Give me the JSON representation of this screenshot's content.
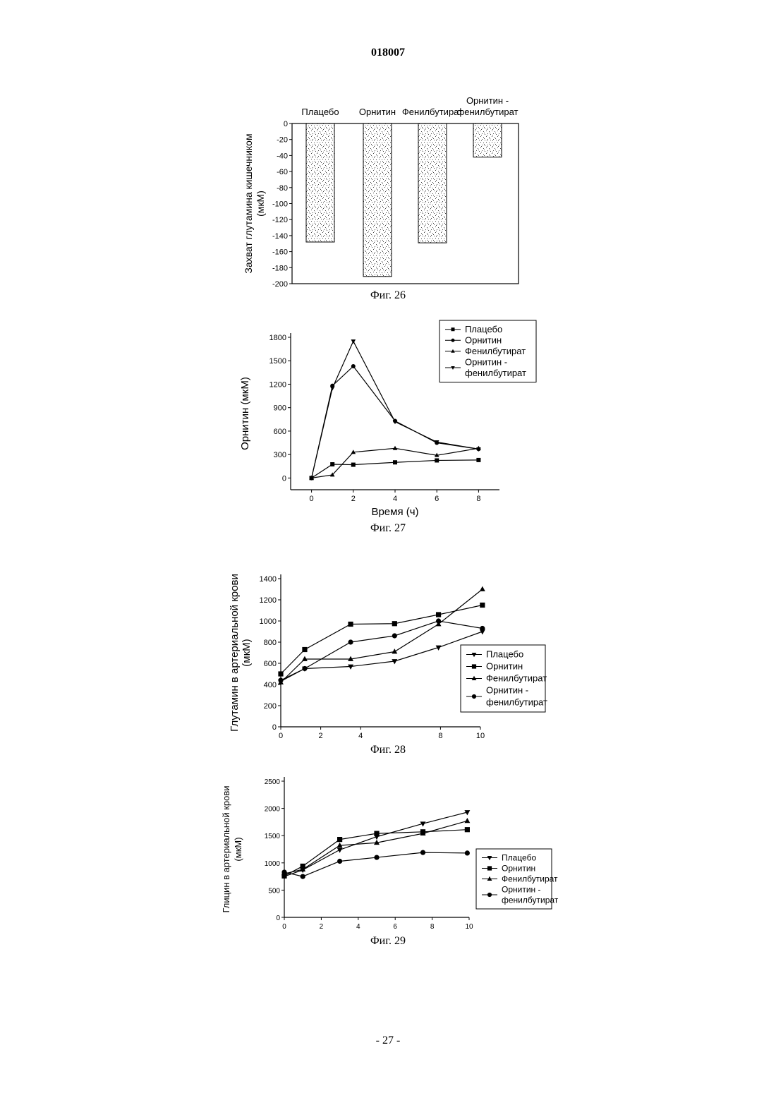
{
  "header": {
    "doc_number": "018007"
  },
  "footer": {
    "page_number": "- 27 -"
  },
  "figures": [
    {
      "caption": "Фиг. 26"
    },
    {
      "caption": "Фиг. 27"
    },
    {
      "caption": "Фиг. 28"
    },
    {
      "caption": "Фиг. 29"
    }
  ],
  "chart_data": [
    {
      "type": "bar",
      "title": "",
      "ylabel": [
        "Захват глутамина кишечником",
        "(мкМ)"
      ],
      "xlabel": "",
      "categories": [
        [
          "Плацебо"
        ],
        [
          "Орнитин"
        ],
        [
          "Фенилбутират"
        ],
        [
          "Орнитин -",
          "фенилбутират"
        ]
      ],
      "values": [
        -148,
        -191,
        -149,
        -42
      ],
      "ylim": [
        -200,
        0
      ],
      "yticks": [
        0,
        -20,
        -40,
        -60,
        -80,
        -100,
        -120,
        -140,
        -160,
        -180,
        -200
      ],
      "legend": "none"
    },
    {
      "type": "line",
      "ylabel": "Орнитин (мкМ)",
      "xlabel": "Время (ч)",
      "ylim": [
        -150,
        1800
      ],
      "xlim": [
        -1,
        9
      ],
      "yticks": [
        0,
        300,
        600,
        900,
        1200,
        1500,
        1800
      ],
      "xticks": [
        0,
        2,
        4,
        6,
        8
      ],
      "legend": "top-right",
      "series": [
        {
          "name": "Плацебо",
          "marker": "square",
          "x": [
            0,
            1,
            2,
            4,
            6,
            8
          ],
          "y": [
            0,
            175,
            170,
            200,
            225,
            230
          ]
        },
        {
          "name": "Орнитин",
          "marker": "circle",
          "x": [
            0,
            1,
            2,
            4,
            6,
            8
          ],
          "y": [
            0,
            1180,
            1430,
            730,
            450,
            370
          ]
        },
        {
          "name": "Фенилбутират",
          "marker": "triangle-up",
          "x": [
            0,
            1,
            2,
            4,
            6,
            8
          ],
          "y": [
            0,
            40,
            330,
            380,
            290,
            380
          ]
        },
        {
          "name": [
            "Орнитин -",
            "фенилбутират"
          ],
          "marker": "triangle-down",
          "x": [
            0,
            1,
            2,
            4,
            6,
            8
          ],
          "y": [
            0,
            1150,
            1750,
            720,
            460,
            370
          ]
        }
      ]
    },
    {
      "type": "line",
      "ylabel": [
        "Глутамин в артериальной крови",
        "(мкМ)"
      ],
      "xlabel": "",
      "ylim": [
        0,
        1400
      ],
      "xlim": [
        0,
        10
      ],
      "yticks": [
        0,
        200,
        400,
        600,
        800,
        1000,
        1200,
        1400
      ],
      "xticks": [
        0,
        2,
        4,
        8,
        10
      ],
      "legend": "bottom-right",
      "series": [
        {
          "name": "Плацебо",
          "marker": "triangle-down",
          "x": [
            0,
            1.2,
            3.5,
            5.7,
            7.9,
            10.1
          ],
          "y": [
            430,
            550,
            570,
            620,
            750,
            900
          ]
        },
        {
          "name": "Орнитин",
          "marker": "square",
          "x": [
            0,
            1.2,
            3.5,
            5.7,
            7.9,
            10.1
          ],
          "y": [
            500,
            730,
            970,
            975,
            1060,
            1150
          ]
        },
        {
          "name": "Фенилбутират",
          "marker": "triangle-up",
          "x": [
            0,
            1.2,
            3.5,
            5.7,
            7.9,
            10.1
          ],
          "y": [
            420,
            640,
            640,
            710,
            970,
            1300
          ]
        },
        {
          "name": [
            "Орнитин -",
            "фенилбутират"
          ],
          "marker": "circle",
          "x": [
            0,
            1.2,
            3.5,
            5.7,
            7.9,
            10.1
          ],
          "y": [
            440,
            550,
            800,
            860,
            1000,
            930
          ]
        }
      ]
    },
    {
      "type": "line",
      "ylabel": [
        "Глицин в артериальной крови",
        "(мкМ)"
      ],
      "xlabel": "",
      "ylim": [
        0,
        2500
      ],
      "xlim": [
        0,
        10
      ],
      "yticks": [
        0,
        500,
        1000,
        1500,
        2000,
        2500
      ],
      "xticks": [
        0,
        2,
        4,
        6,
        8,
        10
      ],
      "legend": "right",
      "series": [
        {
          "name": "Плацебо",
          "marker": "triangle-down",
          "x": [
            0,
            1,
            3,
            5,
            7.5,
            9.9
          ],
          "y": [
            750,
            870,
            1240,
            1480,
            1720,
            1930
          ]
        },
        {
          "name": "Орнитин",
          "marker": "square",
          "x": [
            0,
            1,
            3,
            5,
            7.5,
            9.9
          ],
          "y": [
            760,
            940,
            1430,
            1540,
            1570,
            1610
          ]
        },
        {
          "name": "Фенилбутират",
          "marker": "triangle-up",
          "x": [
            0,
            1,
            3,
            5,
            7.5,
            9.9
          ],
          "y": [
            800,
            880,
            1320,
            1370,
            1540,
            1770
          ]
        },
        {
          "name": [
            "Орнитин -",
            "фенилбутират"
          ],
          "marker": "circle",
          "x": [
            0,
            1,
            3,
            5,
            7.5,
            9.9
          ],
          "y": [
            830,
            750,
            1030,
            1100,
            1190,
            1180
          ]
        }
      ]
    }
  ]
}
